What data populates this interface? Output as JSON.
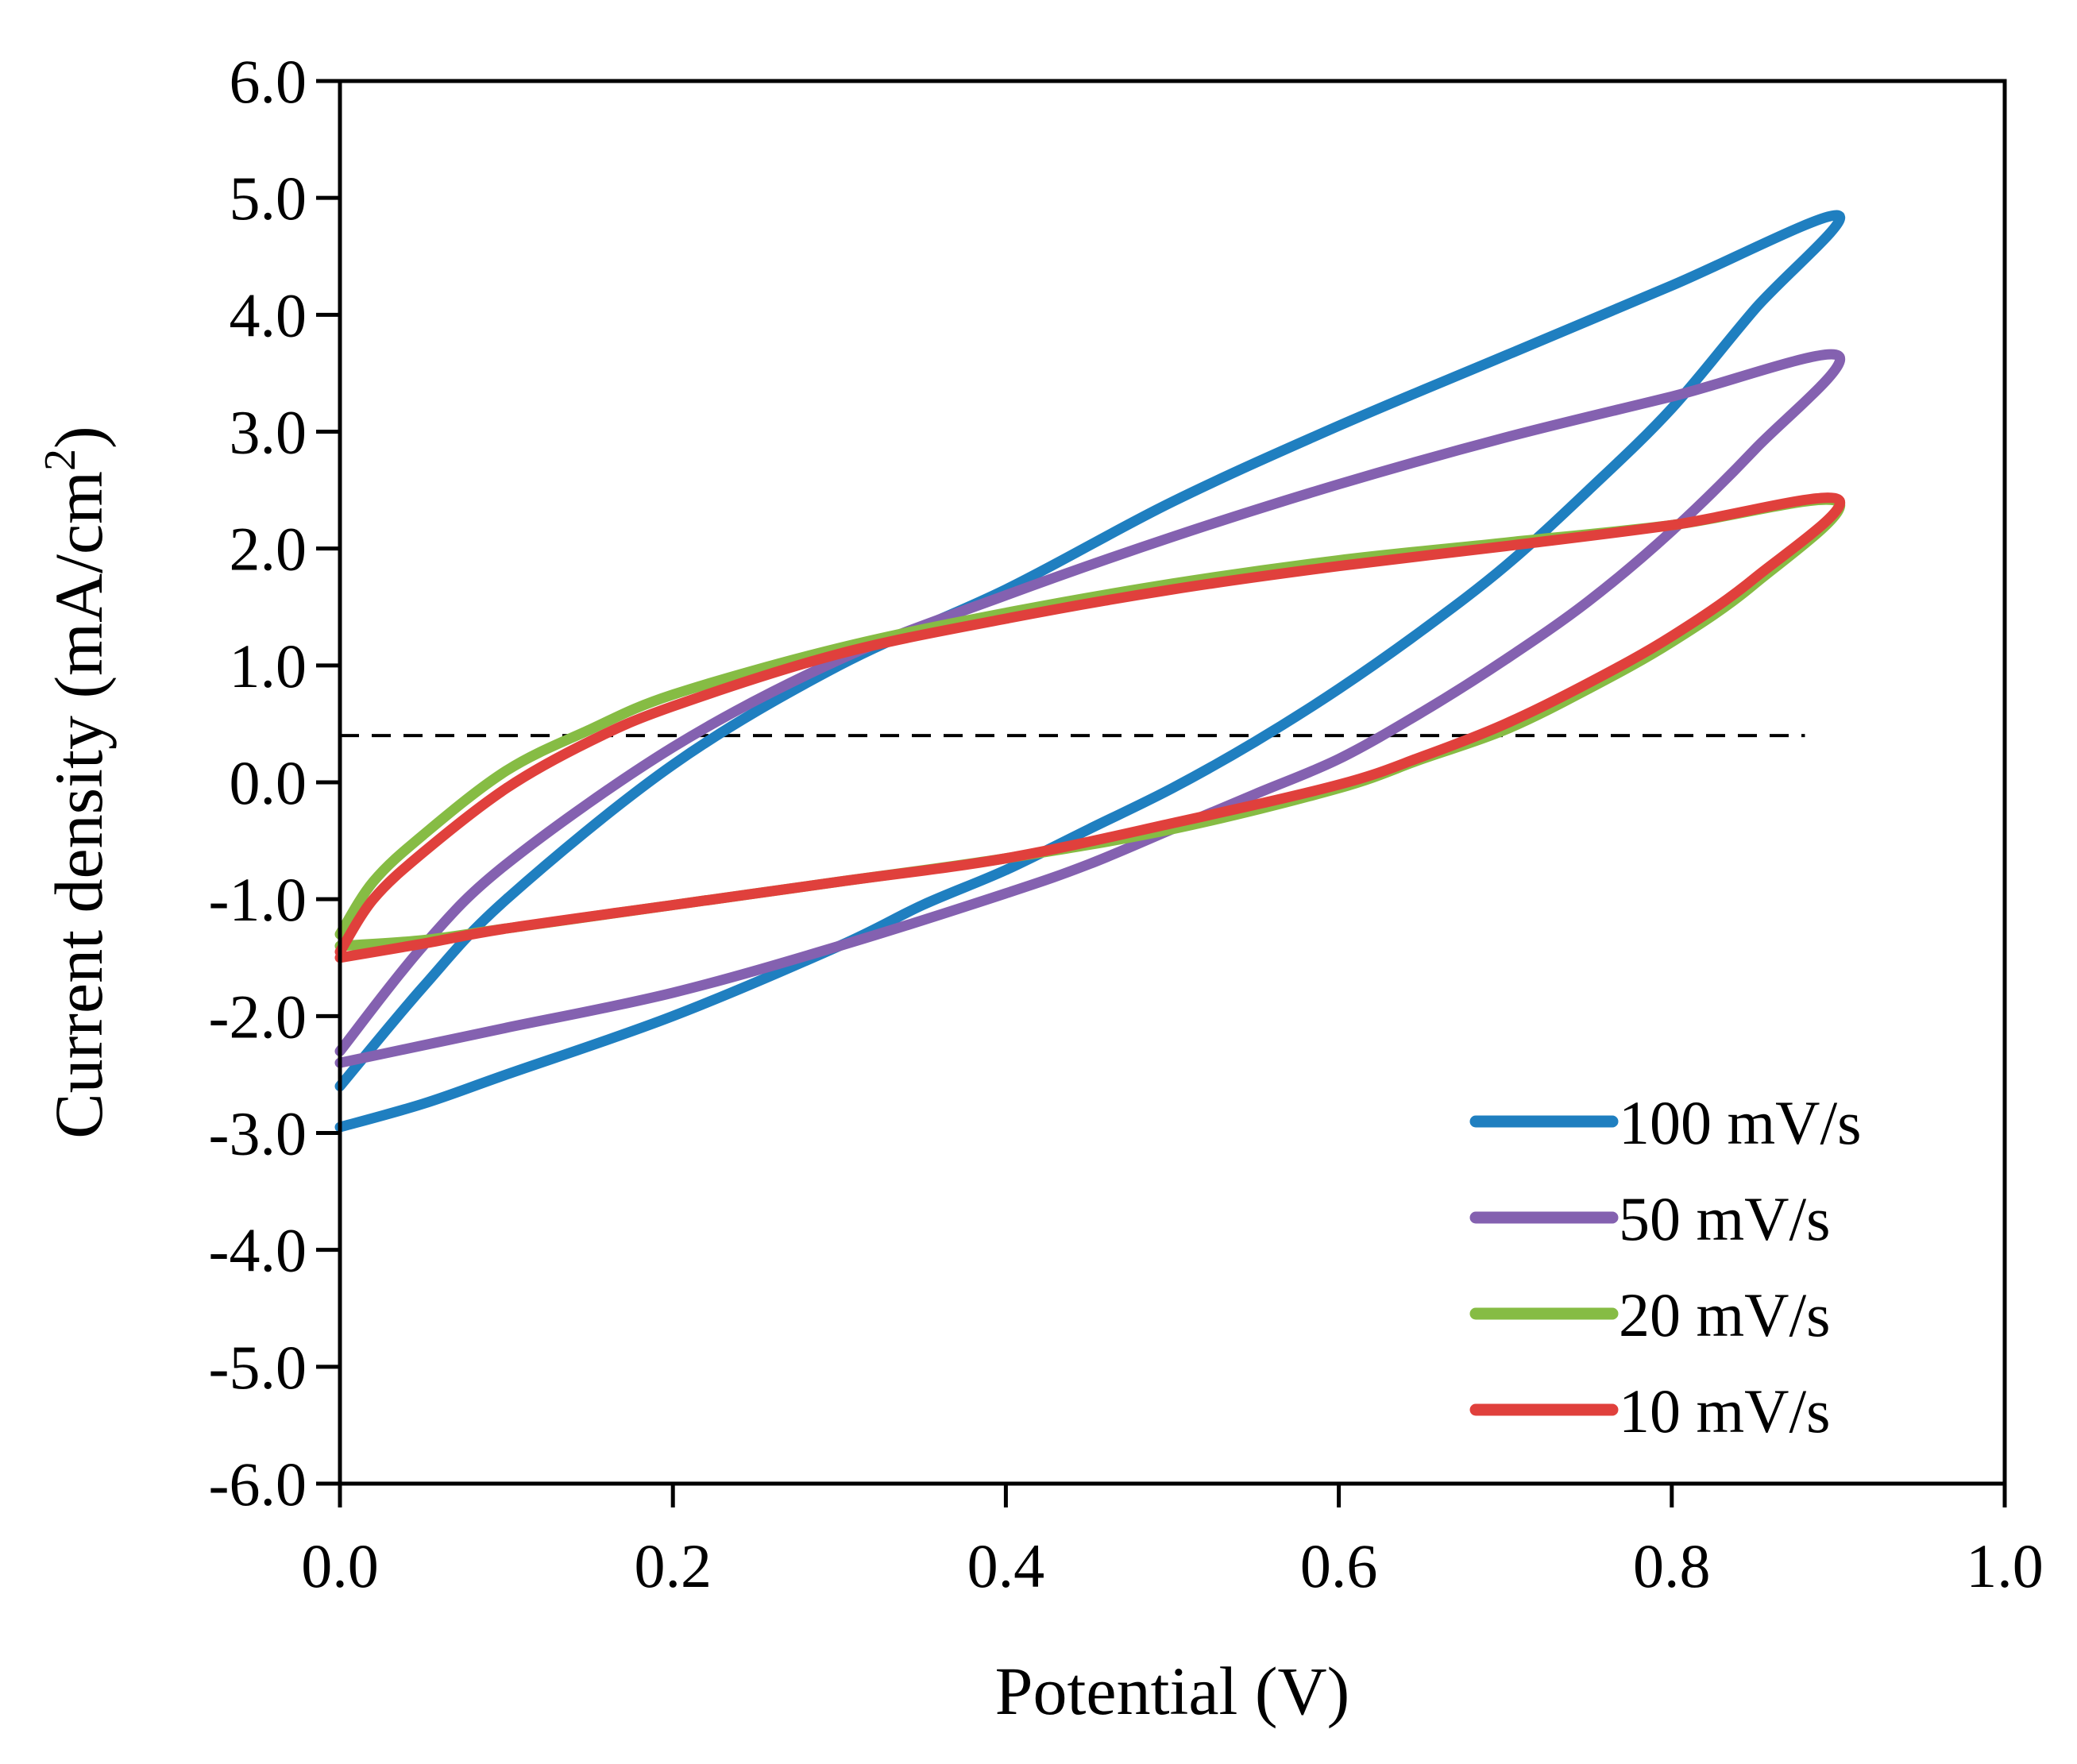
{
  "chart_data": {
    "type": "line",
    "title": "",
    "xlabel": "Potential (V)",
    "ylabel_main": "Current density (mA/cm",
    "ylabel_sup": "2",
    "ylabel_close": ")",
    "xlim": [
      0.0,
      1.0
    ],
    "ylim": [
      -6.0,
      6.0
    ],
    "xticks": [
      0.0,
      0.2,
      0.4,
      0.6,
      0.8,
      1.0
    ],
    "yticks": [
      -6.0,
      -5.0,
      -4.0,
      -3.0,
      -2.0,
      -1.0,
      0.0,
      1.0,
      2.0,
      3.0,
      4.0,
      5.0,
      6.0
    ],
    "xtick_labels": [
      "0.0",
      "0.2",
      "0.4",
      "0.6",
      "0.8",
      "1.0"
    ],
    "ytick_labels": [
      "-6.0",
      "-5.0",
      "-4.0",
      "-3.0",
      "-2.0",
      "-1.0",
      "0.0",
      "1.0",
      "2.0",
      "3.0",
      "4.0",
      "5.0",
      "6.0"
    ],
    "grid": false,
    "legend_position": "bottom-right",
    "reference_line": {
      "style": "dashed",
      "y": 0.4,
      "x_start": 0.0,
      "x_end": 0.88,
      "color": "#000000"
    },
    "series": [
      {
        "name": "100 mV/s",
        "color": "#1f7fc0",
        "x": [
          0.0,
          0.05,
          0.1,
          0.2,
          0.3,
          0.4,
          0.5,
          0.6,
          0.7,
          0.8,
          0.9,
          0.85,
          0.8,
          0.75,
          0.7,
          0.65,
          0.6,
          0.55,
          0.5,
          0.45,
          0.4,
          0.35,
          0.3,
          0.2,
          0.1,
          0.05,
          0.0
        ],
        "y": [
          -2.6,
          -1.75,
          -1.0,
          0.15,
          1.0,
          1.65,
          2.4,
          3.05,
          3.65,
          4.25,
          4.85,
          4.05,
          3.2,
          2.5,
          1.85,
          1.3,
          0.8,
          0.35,
          -0.05,
          -0.4,
          -0.75,
          -1.05,
          -1.4,
          -2.0,
          -2.5,
          -2.75,
          -2.95
        ]
      },
      {
        "name": "50 mV/s",
        "color": "#8461b0",
        "x": [
          0.0,
          0.05,
          0.1,
          0.2,
          0.3,
          0.4,
          0.5,
          0.6,
          0.7,
          0.8,
          0.9,
          0.85,
          0.8,
          0.75,
          0.7,
          0.65,
          0.6,
          0.55,
          0.5,
          0.45,
          0.4,
          0.3,
          0.2,
          0.1,
          0.05,
          0.0
        ],
        "y": [
          -2.3,
          -1.4,
          -0.7,
          0.3,
          1.05,
          1.6,
          2.1,
          2.55,
          2.95,
          3.3,
          3.65,
          2.85,
          2.15,
          1.55,
          1.05,
          0.6,
          0.2,
          -0.1,
          -0.4,
          -0.7,
          -0.95,
          -1.4,
          -1.8,
          -2.1,
          -2.25,
          -2.4
        ]
      },
      {
        "name": "20 mV/s",
        "color": "#86bc44",
        "x": [
          0.0,
          0.02,
          0.05,
          0.1,
          0.15,
          0.2,
          0.3,
          0.4,
          0.5,
          0.6,
          0.7,
          0.8,
          0.9,
          0.85,
          0.8,
          0.75,
          0.7,
          0.65,
          0.6,
          0.5,
          0.4,
          0.3,
          0.2,
          0.1,
          0.05,
          0.0
        ],
        "y": [
          -1.3,
          -0.85,
          -0.45,
          0.1,
          0.45,
          0.75,
          1.15,
          1.45,
          1.7,
          1.9,
          2.05,
          2.2,
          2.4,
          1.7,
          1.2,
          0.8,
          0.45,
          0.2,
          -0.05,
          -0.4,
          -0.65,
          -0.85,
          -1.05,
          -1.25,
          -1.35,
          -1.4
        ]
      },
      {
        "name": "10 mV/s",
        "color": "#e0403c",
        "x": [
          0.0,
          0.02,
          0.05,
          0.1,
          0.15,
          0.2,
          0.3,
          0.4,
          0.5,
          0.6,
          0.7,
          0.8,
          0.9,
          0.85,
          0.8,
          0.75,
          0.7,
          0.65,
          0.6,
          0.5,
          0.4,
          0.3,
          0.2,
          0.1,
          0.05,
          0.0
        ],
        "y": [
          -1.45,
          -1.0,
          -0.6,
          -0.05,
          0.35,
          0.65,
          1.1,
          1.4,
          1.65,
          1.85,
          2.02,
          2.2,
          2.42,
          1.75,
          1.25,
          0.85,
          0.5,
          0.22,
          -0.02,
          -0.35,
          -0.65,
          -0.85,
          -1.05,
          -1.25,
          -1.38,
          -1.5
        ]
      }
    ]
  }
}
